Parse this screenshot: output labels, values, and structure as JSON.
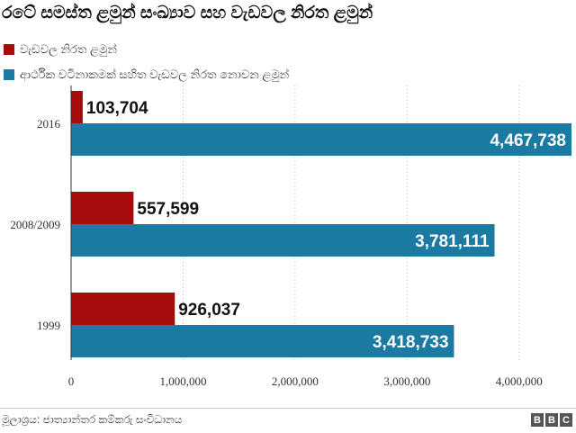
{
  "header": {
    "title": "රටේ සමස්ත ළමුන් සංඛ්‍යාව සහ වැඩවල නිරත ළමුන්"
  },
  "legend": {
    "items": [
      {
        "label": "වැඩවල නිරත ළමුන්",
        "color": "#a50d0d"
      },
      {
        "label": "ආර්ථික වටිනාකමක් සහිත වැඩවල නිරත නොවන ළමුන්",
        "color": "#1a7aa2"
      }
    ]
  },
  "chart_data": {
    "type": "bar",
    "orientation": "horizontal",
    "categories": [
      "2016",
      "2008/2009",
      "1999"
    ],
    "series": [
      {
        "name": "වැඩවල නිරත ළමුන්",
        "color": "#a50d0d",
        "values": [
          103704,
          557599,
          926037
        ],
        "labels": [
          "103,704",
          "557,599",
          "926,037"
        ]
      },
      {
        "name": "ආර්ථික වටිනාකමක් සහිත වැඩවල නිරත නොවන ළමුන්",
        "color": "#1a7aa2",
        "values": [
          4467738,
          3781111,
          3418733
        ],
        "labels": [
          "4,467,738",
          "3,781,111",
          "3,418,733"
        ]
      }
    ],
    "xlim": [
      0,
      4500000
    ],
    "xticks": [
      0,
      1000000,
      2000000,
      3000000,
      4000000
    ],
    "xtick_labels": [
      "0",
      "1,000,000",
      "2,000,000",
      "3,000,000",
      "4,000,000"
    ],
    "grid": "vertical-dotted",
    "legend_position": "top-left"
  },
  "footer": {
    "source": "මූලාශ්‍රය: ජාත්‍යාන්තර කම්කරු සංවිධානය",
    "logo": [
      "B",
      "B",
      "C"
    ]
  }
}
